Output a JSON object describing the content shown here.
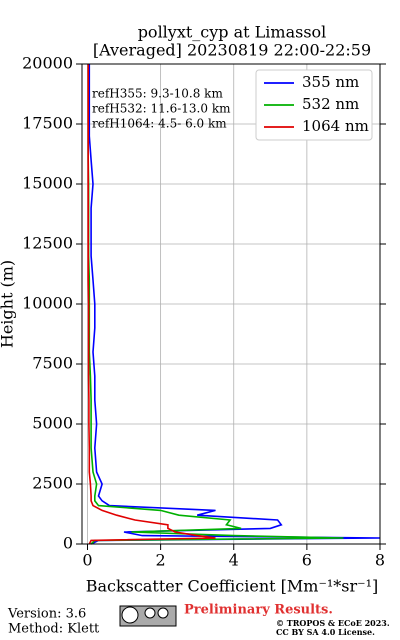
{
  "chart_data": {
    "type": "line",
    "title": [
      "pollyxt_cyp at Limassol",
      "[Averaged] 20230819 22:00-22:59"
    ],
    "xlabel": "Backscatter Coefficient [Mm⁻¹*sr⁻¹]",
    "ylabel": "Height (m)",
    "y": [
      0,
      150,
      250,
      350,
      500,
      650,
      800,
      1000,
      1200,
      1400,
      1600,
      1800,
      2000,
      2500,
      3000,
      4000,
      5000,
      6000,
      7000,
      8000,
      9000,
      10000,
      11000,
      12000,
      13000,
      14000,
      15000,
      16000,
      17000,
      18000,
      19000,
      20000
    ],
    "series": [
      {
        "name": "355 nm",
        "color": "#0000ff",
        "values": [
          0.1,
          0.3,
          8,
          1.5,
          1.0,
          5.0,
          5.3,
          5.2,
          3.0,
          3.5,
          0.6,
          0.4,
          0.3,
          0.4,
          0.25,
          0.2,
          0.25,
          0.2,
          0.2,
          0.15,
          0.2,
          0.2,
          0.15,
          0.1,
          0.1,
          0.1,
          0.15,
          0.1,
          0.05,
          0.05,
          0.05,
          0.05
        ]
      },
      {
        "name": "532 nm",
        "color": "#00b000",
        "values": [
          0.1,
          0.2,
          7.0,
          4.0,
          1.2,
          4.2,
          3.8,
          3.9,
          2.5,
          2.0,
          0.3,
          0.2,
          0.2,
          0.25,
          0.15,
          0.1,
          0.1,
          0.1,
          0.08,
          0.05,
          0.05,
          0.05,
          0.05,
          0.03,
          0.03,
          0.03,
          0.03,
          0.02,
          0.02,
          0.02,
          0.02,
          0.02
        ]
      },
      {
        "name": "1064 nm",
        "color": "#e00000",
        "values": [
          0.05,
          0.1,
          3.5,
          3.0,
          2.4,
          2.2,
          2.2,
          1.3,
          0.8,
          0.4,
          0.15,
          0.1,
          0.1,
          0.08,
          0.05,
          0.05,
          0.04,
          0.04,
          0.03,
          0.03,
          0.03,
          0.03,
          0.02,
          0.02,
          0.02,
          0.02,
          0.02,
          0.02,
          0.02,
          0.02,
          0.02,
          0.02
        ]
      }
    ],
    "xlim": [
      -0.15,
      8
    ],
    "xticks": [
      0,
      2,
      4,
      6,
      8
    ],
    "ylim": [
      0,
      20000
    ],
    "yticks": [
      0,
      2500,
      5000,
      7500,
      10000,
      12500,
      15000,
      17500,
      20000
    ],
    "grid": true,
    "legend": "upper right",
    "annotations": [
      "refH355:  9.3-10.8 km",
      "refH532: 11.6-13.0 km",
      "refH1064:  4.5- 6.0 km"
    ],
    "footer": {
      "version": "Version: 3.6",
      "method": "Method: Klett",
      "preliminary": "Preliminary Results.",
      "license": [
        "© TROPOS & ECoE 2023.",
        "CC BY SA 4.0 License."
      ]
    }
  }
}
